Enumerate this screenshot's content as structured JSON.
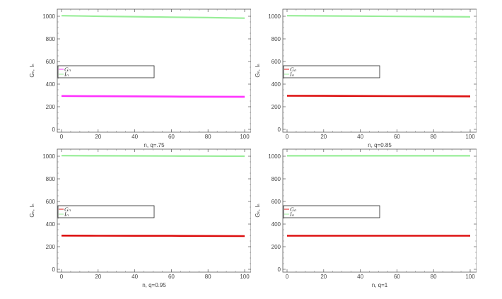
{
  "chart_data": [
    {
      "type": "line",
      "xlabel": "n, q=.75",
      "ylabel": "Gₙ, Iₙ",
      "xlim": [
        0,
        102
      ],
      "ylim": [
        0,
        1050
      ],
      "xticks": [
        0,
        20,
        40,
        60,
        80,
        100
      ],
      "yticks": [
        0,
        200,
        400,
        600,
        800,
        1000
      ],
      "legend": {
        "placement": "center-left",
        "entries": [
          "Gₙ",
          "Iₙ"
        ]
      },
      "series": [
        {
          "name": "Gₙ",
          "color": "#ff33ff",
          "x": [
            0,
            20,
            40,
            60,
            80,
            100
          ],
          "values": [
            295,
            293,
            292,
            290,
            289,
            288
          ]
        },
        {
          "name": "Iₙ",
          "color": "#99ee99",
          "x": [
            0,
            20,
            40,
            60,
            80,
            100
          ],
          "values": [
            1005,
            1000,
            996,
            992,
            988,
            983
          ]
        }
      ]
    },
    {
      "type": "line",
      "xlabel": "n, q=0.85",
      "ylabel": "Gₙ, Iₙ",
      "xlim": [
        0,
        102
      ],
      "ylim": [
        0,
        1050
      ],
      "xticks": [
        0,
        20,
        40,
        60,
        80,
        100
      ],
      "yticks": [
        0,
        200,
        400,
        600,
        800,
        1000
      ],
      "legend": {
        "placement": "center-left",
        "entries": [
          "Gₙ",
          "Iₙ"
        ]
      },
      "series": [
        {
          "name": "Gₙ",
          "color": "#dd1111",
          "x": [
            0,
            20,
            40,
            60,
            80,
            100
          ],
          "values": [
            297,
            296,
            295,
            294,
            293,
            292
          ]
        },
        {
          "name": "Iₙ",
          "color": "#99ee99",
          "x": [
            0,
            20,
            40,
            60,
            80,
            100
          ],
          "values": [
            1005,
            1003,
            1001,
            999,
            997,
            995
          ]
        }
      ]
    },
    {
      "type": "line",
      "xlabel": "n, q=0.95",
      "ylabel": "Gₙ, Iₙ",
      "xlim": [
        0,
        102
      ],
      "ylim": [
        0,
        1050
      ],
      "xticks": [
        0,
        20,
        40,
        60,
        80,
        100
      ],
      "yticks": [
        0,
        200,
        400,
        600,
        800,
        1000
      ],
      "legend": {
        "placement": "center-left",
        "entries": [
          "Gₙ",
          "Iₙ"
        ]
      },
      "series": [
        {
          "name": "Gₙ",
          "color": "#dd1111",
          "x": [
            0,
            20,
            40,
            60,
            80,
            100
          ],
          "values": [
            298,
            297,
            296,
            296,
            295,
            294
          ]
        },
        {
          "name": "Iₙ",
          "color": "#99ee99",
          "x": [
            0,
            20,
            40,
            60,
            80,
            100
          ],
          "values": [
            1005,
            1004,
            1003,
            1002,
            1001,
            1000
          ]
        }
      ]
    },
    {
      "type": "line",
      "xlabel": "n, q=1",
      "ylabel": "Gₙ, Iₙ",
      "xlim": [
        0,
        102
      ],
      "ylim": [
        0,
        1050
      ],
      "xticks": [
        0,
        20,
        40,
        60,
        80,
        100
      ],
      "yticks": [
        0,
        200,
        400,
        600,
        800,
        1000
      ],
      "legend": {
        "placement": "center-left",
        "entries": [
          "Gₙ",
          "Iₙ"
        ]
      },
      "series": [
        {
          "name": "Gₙ",
          "color": "#dd1111",
          "x": [
            0,
            20,
            40,
            60,
            80,
            100
          ],
          "values": [
            297,
            297,
            297,
            297,
            297,
            297
          ]
        },
        {
          "name": "Iₙ",
          "color": "#99ee99",
          "x": [
            0,
            20,
            40,
            60,
            80,
            100
          ],
          "values": [
            1004,
            1004,
            1004,
            1004,
            1004,
            1004
          ]
        }
      ]
    }
  ]
}
